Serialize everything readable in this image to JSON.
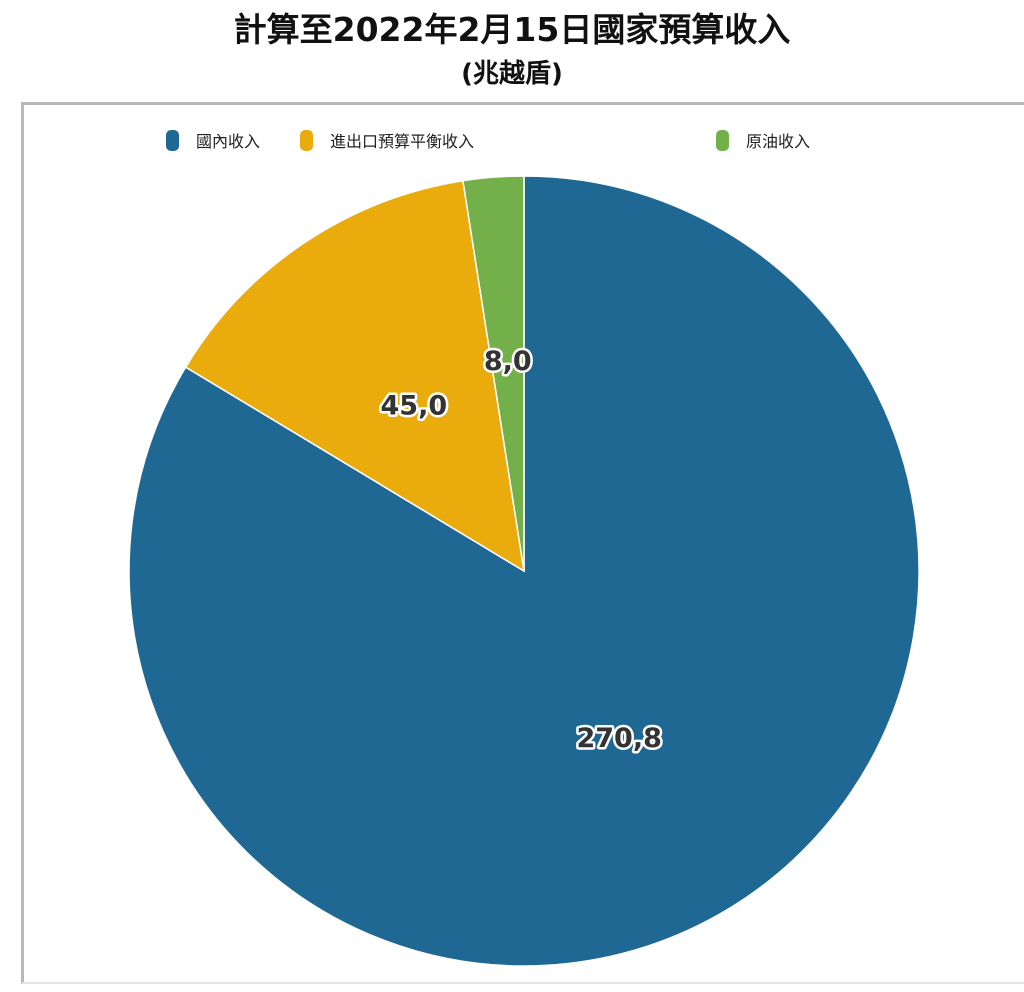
{
  "chart_data": {
    "type": "pie",
    "title": "計算至2022年2月15日國家預算收入",
    "subtitle": "(兆越盾)",
    "legend_position": "top",
    "slices": [
      {
        "name": "國內收入",
        "value": 270.8,
        "label": "270,8",
        "color": "#1f6893"
      },
      {
        "name": "進出口預算平衡收入",
        "value": 45.0,
        "label": "45,0",
        "color": "#eaab0c"
      },
      {
        "name": "原油收入",
        "value": 8.0,
        "label": "8,0",
        "color": "#74b04a"
      }
    ]
  }
}
